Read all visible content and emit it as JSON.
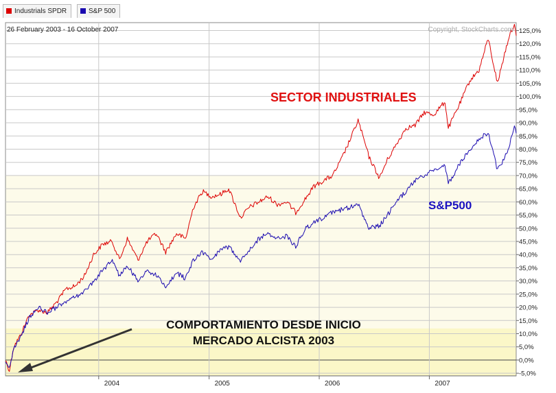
{
  "legend": [
    {
      "label": "Industrials SPDR",
      "color": "#dd0000"
    },
    {
      "label": "S&P 500",
      "color": "#1a0ab0"
    }
  ],
  "date_range": "26 February 2003 - 16 October 2007",
  "copyright": "Copyright, StockCharts.com",
  "annotations": {
    "industrials": "SECTOR INDUSTRIALES",
    "sp500": "S&P500",
    "note_line1": "COMPORTAMIENTO DESDE INICIO",
    "note_line2": "MERCADO ALCISTA 2003"
  },
  "chart_data": {
    "type": "line",
    "x_unit": "date",
    "xlim": [
      "2003-02-26",
      "2007-10-16"
    ],
    "ylim": [
      -6,
      128
    ],
    "y_ticks": [
      -5,
      0,
      5,
      10,
      15,
      20,
      25,
      30,
      35,
      40,
      45,
      50,
      55,
      60,
      65,
      70,
      75,
      80,
      85,
      90,
      95,
      100,
      105,
      110,
      115,
      120,
      125
    ],
    "y_tick_labels": [
      "-5,0%",
      "0,0%",
      "5,0%",
      "10,0%",
      "15,0%",
      "20,0%",
      "25,0%",
      "30,0%",
      "35,0%",
      "40,0%",
      "45,0%",
      "50,0%",
      "55,0%",
      "60,0%",
      "65,0%",
      "70,0%",
      "75,0%",
      "80,0%",
      "85,0%",
      "90,0%",
      "95,0%",
      "100,0%",
      "105,0%",
      "110,0%",
      "115,0%",
      "120,0%",
      "125,0%"
    ],
    "x_tick_labels": [
      {
        "date": "2004-01-01",
        "label": "2004"
      },
      {
        "date": "2005-01-01",
        "label": "2005"
      },
      {
        "date": "2006-01-01",
        "label": "2006"
      },
      {
        "date": "2007-01-01",
        "label": "2007"
      }
    ],
    "grid": true,
    "series": [
      {
        "name": "Industrials SPDR",
        "color": "#dd0000",
        "points": [
          [
            "2003-02-26",
            0
          ],
          [
            "2003-03-11",
            -4
          ],
          [
            "2003-03-25",
            5
          ],
          [
            "2003-04-15",
            9
          ],
          [
            "2003-05-15",
            17
          ],
          [
            "2003-06-15",
            19
          ],
          [
            "2003-07-15",
            18
          ],
          [
            "2003-08-15",
            22
          ],
          [
            "2003-09-15",
            27
          ],
          [
            "2003-10-15",
            28
          ],
          [
            "2003-11-15",
            32
          ],
          [
            "2003-12-15",
            40
          ],
          [
            "2004-01-15",
            44
          ],
          [
            "2004-02-15",
            45
          ],
          [
            "2004-03-10",
            38
          ],
          [
            "2004-04-05",
            46
          ],
          [
            "2004-05-10",
            38
          ],
          [
            "2004-06-10",
            45
          ],
          [
            "2004-07-10",
            48
          ],
          [
            "2004-08-10",
            41
          ],
          [
            "2004-09-15",
            48
          ],
          [
            "2004-10-15",
            46
          ],
          [
            "2004-11-10",
            58
          ],
          [
            "2004-12-10",
            64
          ],
          [
            "2005-01-10",
            62
          ],
          [
            "2005-02-10",
            63
          ],
          [
            "2005-03-07",
            65
          ],
          [
            "2005-04-15",
            54
          ],
          [
            "2005-05-15",
            58
          ],
          [
            "2005-06-15",
            60
          ],
          [
            "2005-07-15",
            62
          ],
          [
            "2005-08-15",
            59
          ],
          [
            "2005-09-15",
            60
          ],
          [
            "2005-10-15",
            56
          ],
          [
            "2005-11-15",
            61
          ],
          [
            "2005-12-15",
            66
          ],
          [
            "2006-01-15",
            68
          ],
          [
            "2006-02-15",
            70
          ],
          [
            "2006-03-15",
            76
          ],
          [
            "2006-04-15",
            84
          ],
          [
            "2006-05-10",
            91
          ],
          [
            "2006-06-15",
            77
          ],
          [
            "2006-07-20",
            69
          ],
          [
            "2006-08-15",
            76
          ],
          [
            "2006-09-15",
            82
          ],
          [
            "2006-10-15",
            88
          ],
          [
            "2006-11-15",
            89
          ],
          [
            "2006-12-15",
            94
          ],
          [
            "2007-01-15",
            93
          ],
          [
            "2007-02-22",
            98
          ],
          [
            "2007-03-05",
            88
          ],
          [
            "2007-04-15",
            98
          ],
          [
            "2007-05-15",
            106
          ],
          [
            "2007-06-15",
            110
          ],
          [
            "2007-07-15",
            122
          ],
          [
            "2007-08-15",
            105
          ],
          [
            "2007-09-05",
            115
          ],
          [
            "2007-09-25",
            124
          ],
          [
            "2007-10-10",
            127
          ],
          [
            "2007-10-16",
            123
          ]
        ]
      },
      {
        "name": "S&P 500",
        "color": "#1a0ab0",
        "points": [
          [
            "2003-02-26",
            0
          ],
          [
            "2003-03-11",
            -3
          ],
          [
            "2003-03-25",
            4
          ],
          [
            "2003-04-15",
            8
          ],
          [
            "2003-05-15",
            16
          ],
          [
            "2003-06-15",
            20
          ],
          [
            "2003-07-15",
            18
          ],
          [
            "2003-08-15",
            20
          ],
          [
            "2003-09-15",
            22
          ],
          [
            "2003-10-15",
            24
          ],
          [
            "2003-11-15",
            26
          ],
          [
            "2003-12-15",
            30
          ],
          [
            "2004-01-15",
            34
          ],
          [
            "2004-02-15",
            38
          ],
          [
            "2004-03-10",
            32
          ],
          [
            "2004-04-05",
            36
          ],
          [
            "2004-05-10",
            30
          ],
          [
            "2004-06-10",
            34
          ],
          [
            "2004-07-10",
            32
          ],
          [
            "2004-08-10",
            28
          ],
          [
            "2004-09-15",
            33
          ],
          [
            "2004-10-15",
            31
          ],
          [
            "2004-11-10",
            38
          ],
          [
            "2004-12-10",
            41
          ],
          [
            "2005-01-10",
            38
          ],
          [
            "2005-02-10",
            42
          ],
          [
            "2005-03-07",
            43
          ],
          [
            "2005-04-15",
            38
          ],
          [
            "2005-05-15",
            42
          ],
          [
            "2005-06-15",
            46
          ],
          [
            "2005-07-15",
            48
          ],
          [
            "2005-08-15",
            46
          ],
          [
            "2005-09-15",
            47
          ],
          [
            "2005-10-15",
            43
          ],
          [
            "2005-11-15",
            50
          ],
          [
            "2005-12-15",
            52
          ],
          [
            "2006-01-15",
            54
          ],
          [
            "2006-02-15",
            56
          ],
          [
            "2006-03-15",
            57
          ],
          [
            "2006-04-15",
            58
          ],
          [
            "2006-05-10",
            59
          ],
          [
            "2006-06-15",
            50
          ],
          [
            "2006-07-20",
            51
          ],
          [
            "2006-08-15",
            55
          ],
          [
            "2006-09-15",
            60
          ],
          [
            "2006-10-15",
            64
          ],
          [
            "2006-11-15",
            68
          ],
          [
            "2006-12-15",
            70
          ],
          [
            "2007-01-15",
            72
          ],
          [
            "2007-02-22",
            74
          ],
          [
            "2007-03-05",
            67
          ],
          [
            "2007-04-15",
            75
          ],
          [
            "2007-05-15",
            80
          ],
          [
            "2007-06-15",
            84
          ],
          [
            "2007-07-15",
            86
          ],
          [
            "2007-08-15",
            72
          ],
          [
            "2007-09-05",
            76
          ],
          [
            "2007-09-25",
            82
          ],
          [
            "2007-10-10",
            88
          ],
          [
            "2007-10-16",
            86
          ]
        ]
      }
    ]
  }
}
